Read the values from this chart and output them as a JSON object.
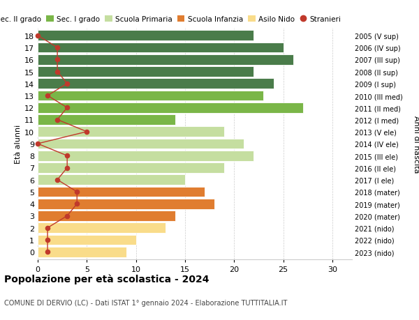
{
  "ages": [
    18,
    17,
    16,
    15,
    14,
    13,
    12,
    11,
    10,
    9,
    8,
    7,
    6,
    5,
    4,
    3,
    2,
    1,
    0
  ],
  "right_labels": [
    "2005 (V sup)",
    "2006 (IV sup)",
    "2007 (III sup)",
    "2008 (II sup)",
    "2009 (I sup)",
    "2010 (III med)",
    "2011 (II med)",
    "2012 (I med)",
    "2013 (V ele)",
    "2014 (IV ele)",
    "2015 (III ele)",
    "2016 (II ele)",
    "2017 (I ele)",
    "2018 (mater)",
    "2019 (mater)",
    "2020 (mater)",
    "2021 (nido)",
    "2022 (nido)",
    "2023 (nido)"
  ],
  "bar_values": [
    22,
    25,
    26,
    22,
    24,
    23,
    27,
    14,
    19,
    21,
    22,
    19,
    15,
    17,
    18,
    14,
    13,
    10,
    9
  ],
  "bar_colors": [
    "#4a7c4a",
    "#4a7c4a",
    "#4a7c4a",
    "#4a7c4a",
    "#4a7c4a",
    "#7ab648",
    "#7ab648",
    "#7ab648",
    "#c5dea0",
    "#c5dea0",
    "#c5dea0",
    "#c5dea0",
    "#c5dea0",
    "#e07d30",
    "#e07d30",
    "#e07d30",
    "#f9dc8a",
    "#f9dc8a",
    "#f9dc8a"
  ],
  "stranieri": [
    0,
    2,
    2,
    2,
    3,
    1,
    3,
    2,
    5,
    0,
    3,
    3,
    2,
    4,
    4,
    3,
    1,
    1,
    1
  ],
  "title": "Popolazione per età scolastica - 2024",
  "subtitle": "COMUNE DI DERVIO (LC) - Dati ISTAT 1° gennaio 2024 - Elaborazione TUTTITALIA.IT",
  "ylabel_left": "Età alunni",
  "ylabel_right": "Anni di nascita",
  "xlim": [
    0,
    32
  ],
  "xticks": [
    0,
    5,
    10,
    15,
    20,
    25,
    30
  ],
  "legend_labels": [
    "Sec. II grado",
    "Sec. I grado",
    "Scuola Primaria",
    "Scuola Infanzia",
    "Asilo Nido",
    "Stranieri"
  ],
  "legend_colors": [
    "#4a7c4a",
    "#7ab648",
    "#c5dea0",
    "#e07d30",
    "#f9dc8a",
    "#c0392b"
  ],
  "stranieri_color": "#c0392b",
  "bg_color": "#ffffff",
  "grid_color": "#cccccc"
}
